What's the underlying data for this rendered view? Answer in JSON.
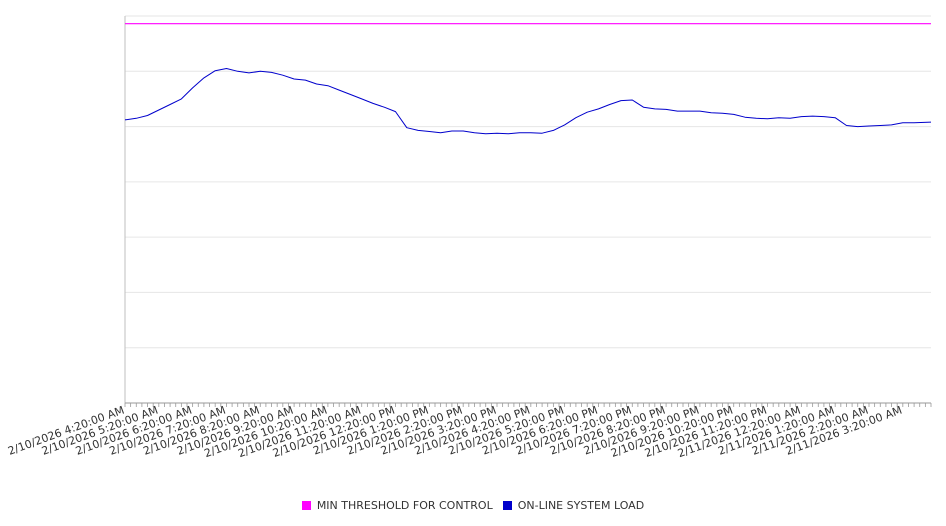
{
  "chart_data": {
    "type": "line",
    "title": "",
    "xlabel": "",
    "ylabel": "",
    "ylim": [
      0,
      70
    ],
    "y_tick_count": 7,
    "grid": true,
    "legend_position": "bottom",
    "x_tick_labels": [
      "2/10/2026 4:20:00 AM",
      "2/10/2026 5:20:00 AM",
      "2/10/2026 6:20:00 AM",
      "2/10/2026 7:20:00 AM",
      "2/10/2026 8:20:00 AM",
      "2/10/2026 9:20:00 AM",
      "2/10/2026 10:20:00 AM",
      "2/10/2026 11:20:00 AM",
      "2/10/2026 12:20:00 PM",
      "2/10/2026 1:20:00 PM",
      "2/10/2026 2:20:00 PM",
      "2/10/2026 3:20:00 PM",
      "2/10/2026 4:20:00 PM",
      "2/10/2026 5:20:00 PM",
      "2/10/2026 6:20:00 PM",
      "2/10/2026 7:20:00 PM",
      "2/10/2026 8:20:00 PM",
      "2/10/2026 9:20:00 PM",
      "2/10/2026 10:20:00 PM",
      "2/10/2026 11:20:00 PM",
      "2/11/2026 12:20:00 AM",
      "2/11/2026 1:20:00 AM",
      "2/11/2026 2:20:00 AM",
      "2/11/2026 3:20:00 AM"
    ],
    "x_range": [
      "2/10/2026 4:20:00 AM",
      "2/11/2026 4:10:00 AM"
    ],
    "series": [
      {
        "name": "MIN THRESHOLD FOR CONTROL",
        "color": "#ff00ff",
        "x": [
          "2/10/2026 4:20:00 AM",
          "2/11/2026 4:10:00 AM"
        ],
        "values": [
          68.6,
          68.6
        ]
      },
      {
        "name": "ON-LINE SYSTEM LOAD",
        "color": "#0000cc",
        "x": [
          "2/10/2026 4:20:00 AM",
          "2/10/2026 4:40:00 AM",
          "2/10/2026 5:00:00 AM",
          "2/10/2026 5:20:00 AM",
          "2/10/2026 5:40:00 AM",
          "2/10/2026 6:00:00 AM",
          "2/10/2026 6:20:00 AM",
          "2/10/2026 6:40:00 AM",
          "2/10/2026 7:00:00 AM",
          "2/10/2026 7:20:00 AM",
          "2/10/2026 7:40:00 AM",
          "2/10/2026 8:00:00 AM",
          "2/10/2026 8:20:00 AM",
          "2/10/2026 8:40:00 AM",
          "2/10/2026 9:00:00 AM",
          "2/10/2026 9:20:00 AM",
          "2/10/2026 9:40:00 AM",
          "2/10/2026 10:00:00 AM",
          "2/10/2026 10:20:00 AM",
          "2/10/2026 10:40:00 AM",
          "2/10/2026 11:00:00 AM",
          "2/10/2026 11:20:00 AM",
          "2/10/2026 11:40:00 AM",
          "2/10/2026 12:00:00 PM",
          "2/10/2026 12:20:00 PM",
          "2/10/2026 12:40:00 PM",
          "2/10/2026 1:00:00 PM",
          "2/10/2026 1:20:00 PM",
          "2/10/2026 1:40:00 PM",
          "2/10/2026 2:00:00 PM",
          "2/10/2026 2:20:00 PM",
          "2/10/2026 2:40:00 PM",
          "2/10/2026 3:00:00 PM",
          "2/10/2026 3:20:00 PM",
          "2/10/2026 3:40:00 PM",
          "2/10/2026 4:00:00 PM",
          "2/10/2026 4:20:00 PM",
          "2/10/2026 4:40:00 PM",
          "2/10/2026 5:00:00 PM",
          "2/10/2026 5:20:00 PM",
          "2/10/2026 5:40:00 PM",
          "2/10/2026 6:00:00 PM",
          "2/10/2026 6:20:00 PM",
          "2/10/2026 6:40:00 PM",
          "2/10/2026 7:00:00 PM",
          "2/10/2026 7:20:00 PM",
          "2/10/2026 7:40:00 PM",
          "2/10/2026 8:00:00 PM",
          "2/10/2026 8:20:00 PM",
          "2/10/2026 8:40:00 PM",
          "2/10/2026 9:00:00 PM",
          "2/10/2026 9:20:00 PM",
          "2/10/2026 9:40:00 PM",
          "2/10/2026 10:00:00 PM",
          "2/10/2026 10:20:00 PM",
          "2/10/2026 10:40:00 PM",
          "2/10/2026 11:00:00 PM",
          "2/10/2026 11:20:00 PM",
          "2/10/2026 11:40:00 PM",
          "2/11/2026 12:00:00 AM",
          "2/11/2026 12:20:00 AM",
          "2/11/2026 12:40:00 AM",
          "2/11/2026 1:00:00 AM",
          "2/11/2026 1:20:00 AM",
          "2/11/2026 1:40:00 AM",
          "2/11/2026 2:00:00 AM",
          "2/11/2026 2:20:00 AM",
          "2/11/2026 2:40:00 AM",
          "2/11/2026 3:00:00 AM",
          "2/11/2026 3:20:00 AM",
          "2/11/2026 3:40:00 AM",
          "2/11/2026 4:10:00 AM"
        ],
        "values": [
          51.2,
          51.5,
          52.0,
          53.0,
          54.0,
          55.0,
          57.0,
          58.8,
          60.1,
          60.5,
          60.0,
          59.7,
          60.0,
          59.8,
          59.3,
          58.6,
          58.4,
          57.7,
          57.4,
          56.6,
          55.8,
          55.0,
          54.2,
          53.5,
          52.7,
          49.8,
          49.3,
          49.1,
          48.9,
          49.2,
          49.2,
          48.9,
          48.7,
          48.8,
          48.7,
          48.9,
          48.9,
          48.8,
          49.3,
          50.3,
          51.6,
          52.6,
          53.2,
          54.0,
          54.7,
          54.8,
          53.5,
          53.2,
          53.1,
          52.8,
          52.8,
          52.8,
          52.5,
          52.4,
          52.2,
          51.7,
          51.5,
          51.4,
          51.6,
          51.5,
          51.8,
          51.9,
          51.8,
          51.6,
          50.2,
          50.0,
          50.1,
          50.2,
          50.3,
          50.7,
          50.7,
          50.8
        ]
      }
    ]
  }
}
